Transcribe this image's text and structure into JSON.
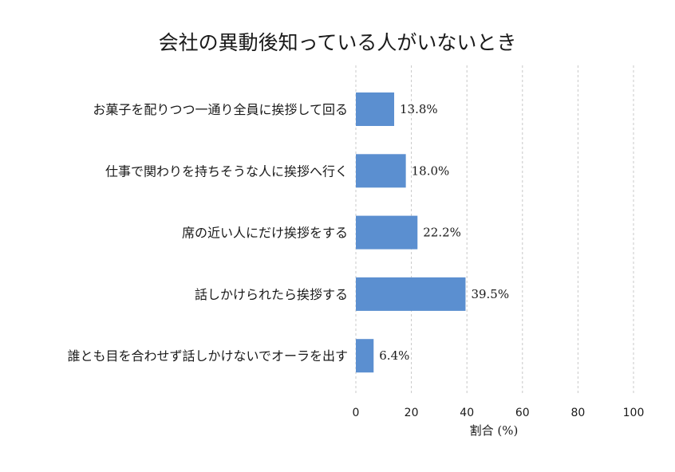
{
  "chart_data": {
    "type": "bar",
    "orientation": "horizontal",
    "title": "会社の異動後知っている人がいないとき",
    "xlabel": "割合 (%)",
    "ylabel": "",
    "categories": [
      "お菓子を配りつつ一通り全員に挨拶して回る",
      "仕事で関わりを持ちそうな人に挨拶へ行く",
      "席の近い人にだけ挨拶をする",
      "話しかけられたら挨拶する",
      "誰とも目を合わせず話しかけないでオーラを出す"
    ],
    "values": [
      13.8,
      18.0,
      22.2,
      39.5,
      6.4
    ],
    "value_labels": [
      "13.8%",
      "18.0%",
      "22.2%",
      "39.5%",
      "6.4%"
    ],
    "xlim": [
      0,
      100
    ],
    "xticks": [
      0,
      20,
      40,
      60,
      80,
      100
    ],
    "grid": "vertical dashed",
    "bar_color": "#5b8fd0",
    "grid_color": "#c8c8c8",
    "text_color": "#1a1a1a"
  }
}
